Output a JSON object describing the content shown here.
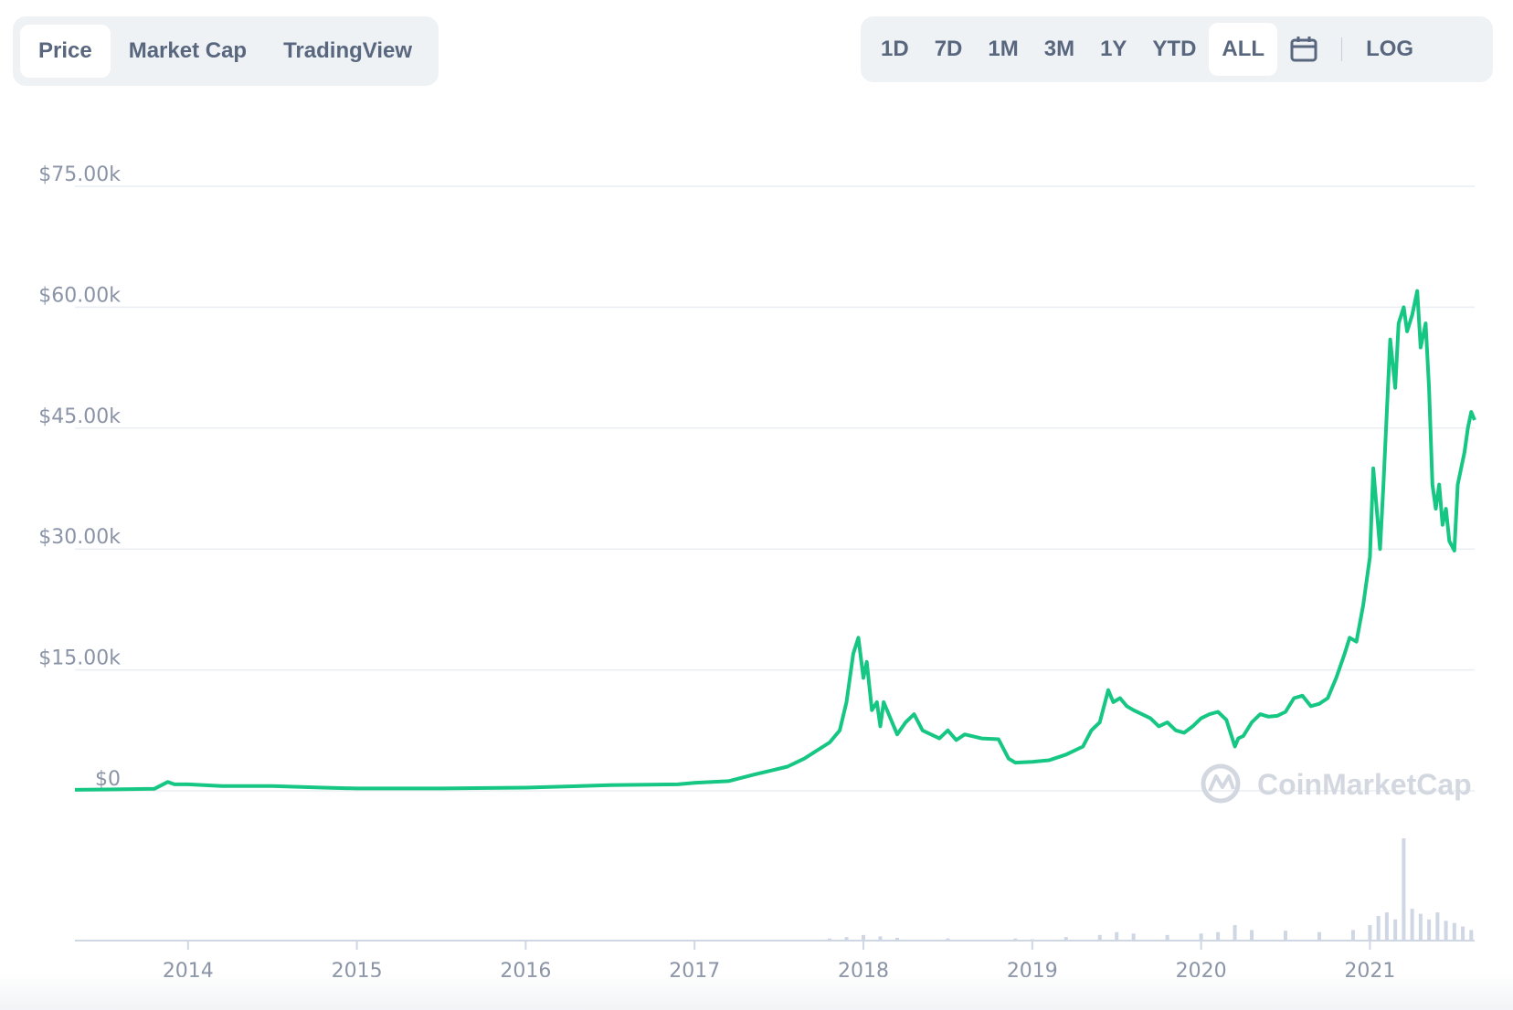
{
  "tabs": [
    {
      "label": "Price",
      "active": true
    },
    {
      "label": "Market Cap",
      "active": false
    },
    {
      "label": "TradingView",
      "active": false
    }
  ],
  "ranges": [
    {
      "label": "1D",
      "active": false
    },
    {
      "label": "7D",
      "active": false
    },
    {
      "label": "1M",
      "active": false
    },
    {
      "label": "3M",
      "active": false
    },
    {
      "label": "1Y",
      "active": false
    },
    {
      "label": "YTD",
      "active": false
    },
    {
      "label": "ALL",
      "active": true
    }
  ],
  "calendar_icon": "calendar-icon",
  "log_label": "LOG",
  "watermark": "CoinMarketCap",
  "colors": {
    "line": "#16c784",
    "volume": "#cfd6e4",
    "grid": "#eff2f5",
    "text": "#58667e"
  },
  "chart_data": {
    "type": "line",
    "title": "",
    "xlabel": "",
    "ylabel": "",
    "xlim": [
      2013.33,
      2021.62
    ],
    "ylim": [
      0,
      75000
    ],
    "y_ticks": [
      0,
      15000,
      30000,
      45000,
      60000,
      75000
    ],
    "y_tick_labels": [
      "$0",
      "$15.00k",
      "$30.00k",
      "$45.00k",
      "$60.00k",
      "$75.00k"
    ],
    "x_ticks": [
      2014,
      2015,
      2016,
      2017,
      2018,
      2019,
      2020,
      2021
    ],
    "x_tick_labels": [
      "2014",
      "2015",
      "2016",
      "2017",
      "2018",
      "2019",
      "2020",
      "2021"
    ],
    "grid": true,
    "series": [
      {
        "x": [
          2013.33,
          2013.8,
          2013.88,
          2013.92,
          2014.0,
          2014.2,
          2014.5,
          2014.8,
          2015.0,
          2015.5,
          2016.0,
          2016.5,
          2016.9,
          2017.0,
          2017.2,
          2017.35,
          2017.45,
          2017.55,
          2017.65,
          2017.8,
          2017.86,
          2017.9,
          2017.94,
          2017.97,
          2018.0,
          2018.02,
          2018.05,
          2018.08,
          2018.1,
          2018.12,
          2018.16,
          2018.2,
          2018.25,
          2018.3,
          2018.35,
          2018.4,
          2018.45,
          2018.5,
          2018.55,
          2018.6,
          2018.7,
          2018.8,
          2018.86,
          2018.9,
          2019.0,
          2019.1,
          2019.2,
          2019.3,
          2019.35,
          2019.4,
          2019.45,
          2019.48,
          2019.52,
          2019.56,
          2019.6,
          2019.65,
          2019.7,
          2019.75,
          2019.8,
          2019.85,
          2019.9,
          2019.95,
          2020.0,
          2020.05,
          2020.1,
          2020.15,
          2020.2,
          2020.22,
          2020.25,
          2020.3,
          2020.35,
          2020.4,
          2020.45,
          2020.5,
          2020.55,
          2020.6,
          2020.65,
          2020.7,
          2020.75,
          2020.8,
          2020.85,
          2020.88,
          2020.92,
          2020.96,
          2021.0,
          2021.02,
          2021.04,
          2021.06,
          2021.08,
          2021.1,
          2021.12,
          2021.15,
          2021.17,
          2021.2,
          2021.22,
          2021.25,
          2021.28,
          2021.3,
          2021.33,
          2021.35,
          2021.37,
          2021.39,
          2021.41,
          2021.43,
          2021.45,
          2021.47,
          2021.5,
          2021.52,
          2021.54,
          2021.56,
          2021.58,
          2021.6,
          2021.62
        ],
        "y": [
          120,
          250,
          1100,
          800,
          800,
          600,
          600,
          400,
          300,
          300,
          400,
          700,
          800,
          1000,
          1200,
          2000,
          2500,
          3000,
          4000,
          6000,
          7500,
          11000,
          17000,
          19000,
          14000,
          16000,
          10000,
          11000,
          8000,
          11000,
          9000,
          7000,
          8500,
          9500,
          7500,
          7000,
          6500,
          7500,
          6300,
          7000,
          6500,
          6400,
          4000,
          3500,
          3600,
          3800,
          4500,
          5500,
          7500,
          8500,
          12500,
          11000,
          11500,
          10500,
          10000,
          9500,
          9000,
          8000,
          8500,
          7500,
          7200,
          8000,
          9000,
          9500,
          9800,
          8800,
          5500,
          6500,
          6800,
          8500,
          9500,
          9200,
          9300,
          9800,
          11500,
          11800,
          10500,
          10800,
          11500,
          14000,
          17000,
          19000,
          18500,
          23000,
          29000,
          40000,
          35000,
          30000,
          38000,
          47000,
          56000,
          50000,
          58000,
          60000,
          57000,
          59000,
          62000,
          55000,
          58000,
          50000,
          38000,
          35000,
          38000,
          33000,
          35000,
          31000,
          29800,
          38000,
          40000,
          42000,
          45000,
          47000,
          46000
        ]
      }
    ],
    "volume": {
      "x": [
        2017.8,
        2017.9,
        2018.0,
        2018.1,
        2018.2,
        2018.5,
        2018.9,
        2019.0,
        2019.2,
        2019.4,
        2019.5,
        2019.6,
        2019.8,
        2020.0,
        2020.1,
        2020.2,
        2020.3,
        2020.5,
        2020.7,
        2020.9,
        2021.0,
        2021.05,
        2021.1,
        2021.15,
        2021.2,
        2021.25,
        2021.3,
        2021.35,
        2021.4,
        2021.45,
        2021.5,
        2021.55,
        2021.6
      ],
      "v": [
        3,
        5,
        8,
        6,
        4,
        3,
        3,
        2,
        5,
        8,
        12,
        10,
        8,
        10,
        12,
        22,
        15,
        14,
        12,
        15,
        22,
        35,
        40,
        30,
        145,
        45,
        38,
        30,
        40,
        28,
        25,
        20,
        15
      ]
    }
  }
}
